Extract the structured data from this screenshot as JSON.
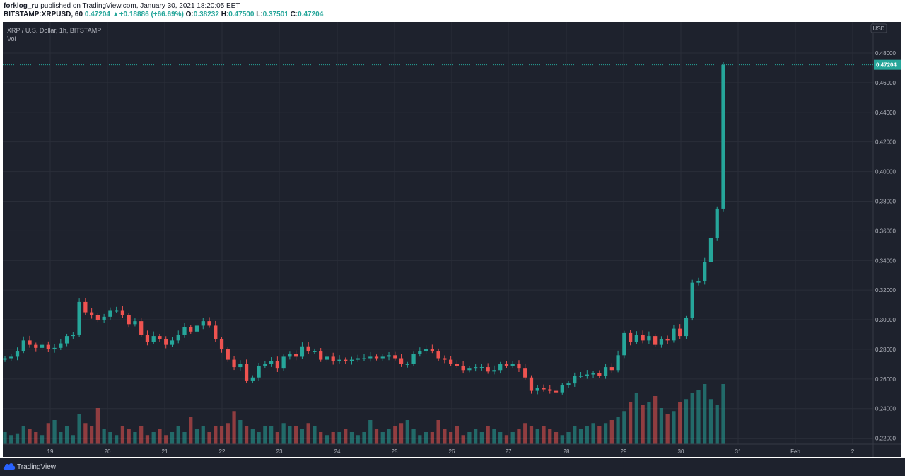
{
  "header": {
    "line1_user": "forklog_ru",
    "line1_rest": " published on TradingView.com, January 30, 2021 18:20:05 EET",
    "symbol": "BITSTAMP:XRPUSD, 60",
    "last": "0.47204",
    "change_arrow": "▲",
    "change": "+0.18886 (+66.69%)",
    "o_label": "O:",
    "o": "0.38232",
    "h_label": "H:",
    "h": "0.47500",
    "l_label": "L:",
    "l": "0.37501",
    "c_label": "C:",
    "c": "0.47204"
  },
  "legend": {
    "title": "XRP / U.S. Dollar, 1h, BITSTAMP",
    "vol": "Vol"
  },
  "price_axis": {
    "currency": "USD",
    "last_price_label": "0.47204"
  },
  "footer": {
    "brand": "TradingView",
    "icon": "tradingview-cloud-icon"
  },
  "colors": {
    "up": "#26a69a",
    "down": "#ef5350",
    "background": "#1e222d",
    "grid": "#2a2e39",
    "text": "#b2b5be"
  },
  "chart_data": {
    "type": "candlestick",
    "interval": "1h",
    "symbol": "XRP / U.S. Dollar",
    "exchange": "BITSTAMP",
    "y_ticks": [
      0.22,
      0.24,
      0.26,
      0.28,
      0.3,
      0.32,
      0.34,
      0.36,
      0.38,
      0.4,
      0.42,
      0.44,
      0.46,
      0.48
    ],
    "y_tick_labels": [
      "0.22000",
      "0.24000",
      "0.26000",
      "0.28000",
      "0.30000",
      "0.32000",
      "0.34000",
      "0.36000",
      "0.38000",
      "0.40000",
      "0.42000",
      "0.44000",
      "0.46000",
      "0.48000"
    ],
    "ylim": [
      0.216,
      0.501
    ],
    "x_labels": [
      "19",
      "20",
      "21",
      "22",
      "23",
      "24",
      "25",
      "26",
      "27",
      "28",
      "29",
      "30",
      "31",
      "Feb",
      "2"
    ],
    "last_price": 0.47204,
    "series": [
      {
        "name": "XRP / U.S. Dollar",
        "close": [
          0.274,
          0.275,
          0.279,
          0.286,
          0.283,
          0.281,
          0.283,
          0.28,
          0.281,
          0.284,
          0.289,
          0.29,
          0.312,
          0.305,
          0.303,
          0.3,
          0.302,
          0.306,
          0.306,
          0.303,
          0.297,
          0.299,
          0.29,
          0.285,
          0.289,
          0.287,
          0.283,
          0.286,
          0.29,
          0.295,
          0.292,
          0.296,
          0.299,
          0.296,
          0.287,
          0.28,
          0.273,
          0.268,
          0.27,
          0.259,
          0.261,
          0.269,
          0.27,
          0.272,
          0.267,
          0.275,
          0.277,
          0.275,
          0.282,
          0.279,
          0.279,
          0.273,
          0.275,
          0.272,
          0.273,
          0.272,
          0.273,
          0.274,
          0.274,
          0.275,
          0.274,
          0.275,
          0.276,
          0.274,
          0.27,
          0.27,
          0.277,
          0.279,
          0.28,
          0.279,
          0.274,
          0.273,
          0.27,
          0.269,
          0.266,
          0.267,
          0.268,
          0.268,
          0.265,
          0.266,
          0.27,
          0.269,
          0.27,
          0.267,
          0.261,
          0.252,
          0.254,
          0.253,
          0.252,
          0.251,
          0.256,
          0.257,
          0.262,
          0.262,
          0.263,
          0.264,
          0.262,
          0.268,
          0.266,
          0.276,
          0.291,
          0.285,
          0.29,
          0.286,
          0.289,
          0.283,
          0.287,
          0.286,
          0.294,
          0.289,
          0.301,
          0.325,
          0.326,
          0.339,
          0.355,
          0.375,
          0.472
        ]
      }
    ],
    "volume_relative": [
      0.2,
      0.15,
      0.18,
      0.3,
      0.25,
      0.2,
      0.15,
      0.35,
      0.4,
      0.2,
      0.3,
      0.15,
      0.5,
      0.35,
      0.3,
      0.6,
      0.25,
      0.2,
      0.15,
      0.3,
      0.25,
      0.2,
      0.3,
      0.15,
      0.2,
      0.25,
      0.15,
      0.2,
      0.3,
      0.2,
      0.45,
      0.25,
      0.3,
      0.2,
      0.3,
      0.3,
      0.35,
      0.55,
      0.4,
      0.3,
      0.25,
      0.2,
      0.3,
      0.3,
      0.2,
      0.35,
      0.3,
      0.3,
      0.25,
      0.35,
      0.3,
      0.2,
      0.15,
      0.2,
      0.2,
      0.25,
      0.2,
      0.15,
      0.2,
      0.4,
      0.25,
      0.2,
      0.25,
      0.3,
      0.35,
      0.4,
      0.25,
      0.15,
      0.2,
      0.2,
      0.4,
      0.25,
      0.2,
      0.3,
      0.15,
      0.2,
      0.25,
      0.2,
      0.3,
      0.25,
      0.2,
      0.15,
      0.2,
      0.25,
      0.35,
      0.3,
      0.25,
      0.3,
      0.25,
      0.2,
      0.15,
      0.2,
      0.3,
      0.25,
      0.3,
      0.35,
      0.3,
      0.35,
      0.4,
      0.45,
      0.55,
      0.7,
      0.85,
      0.65,
      0.7,
      0.8,
      0.6,
      0.5,
      0.55,
      0.7,
      0.75,
      0.85,
      0.9,
      1.0,
      0.75,
      0.65,
      1.0
    ]
  }
}
